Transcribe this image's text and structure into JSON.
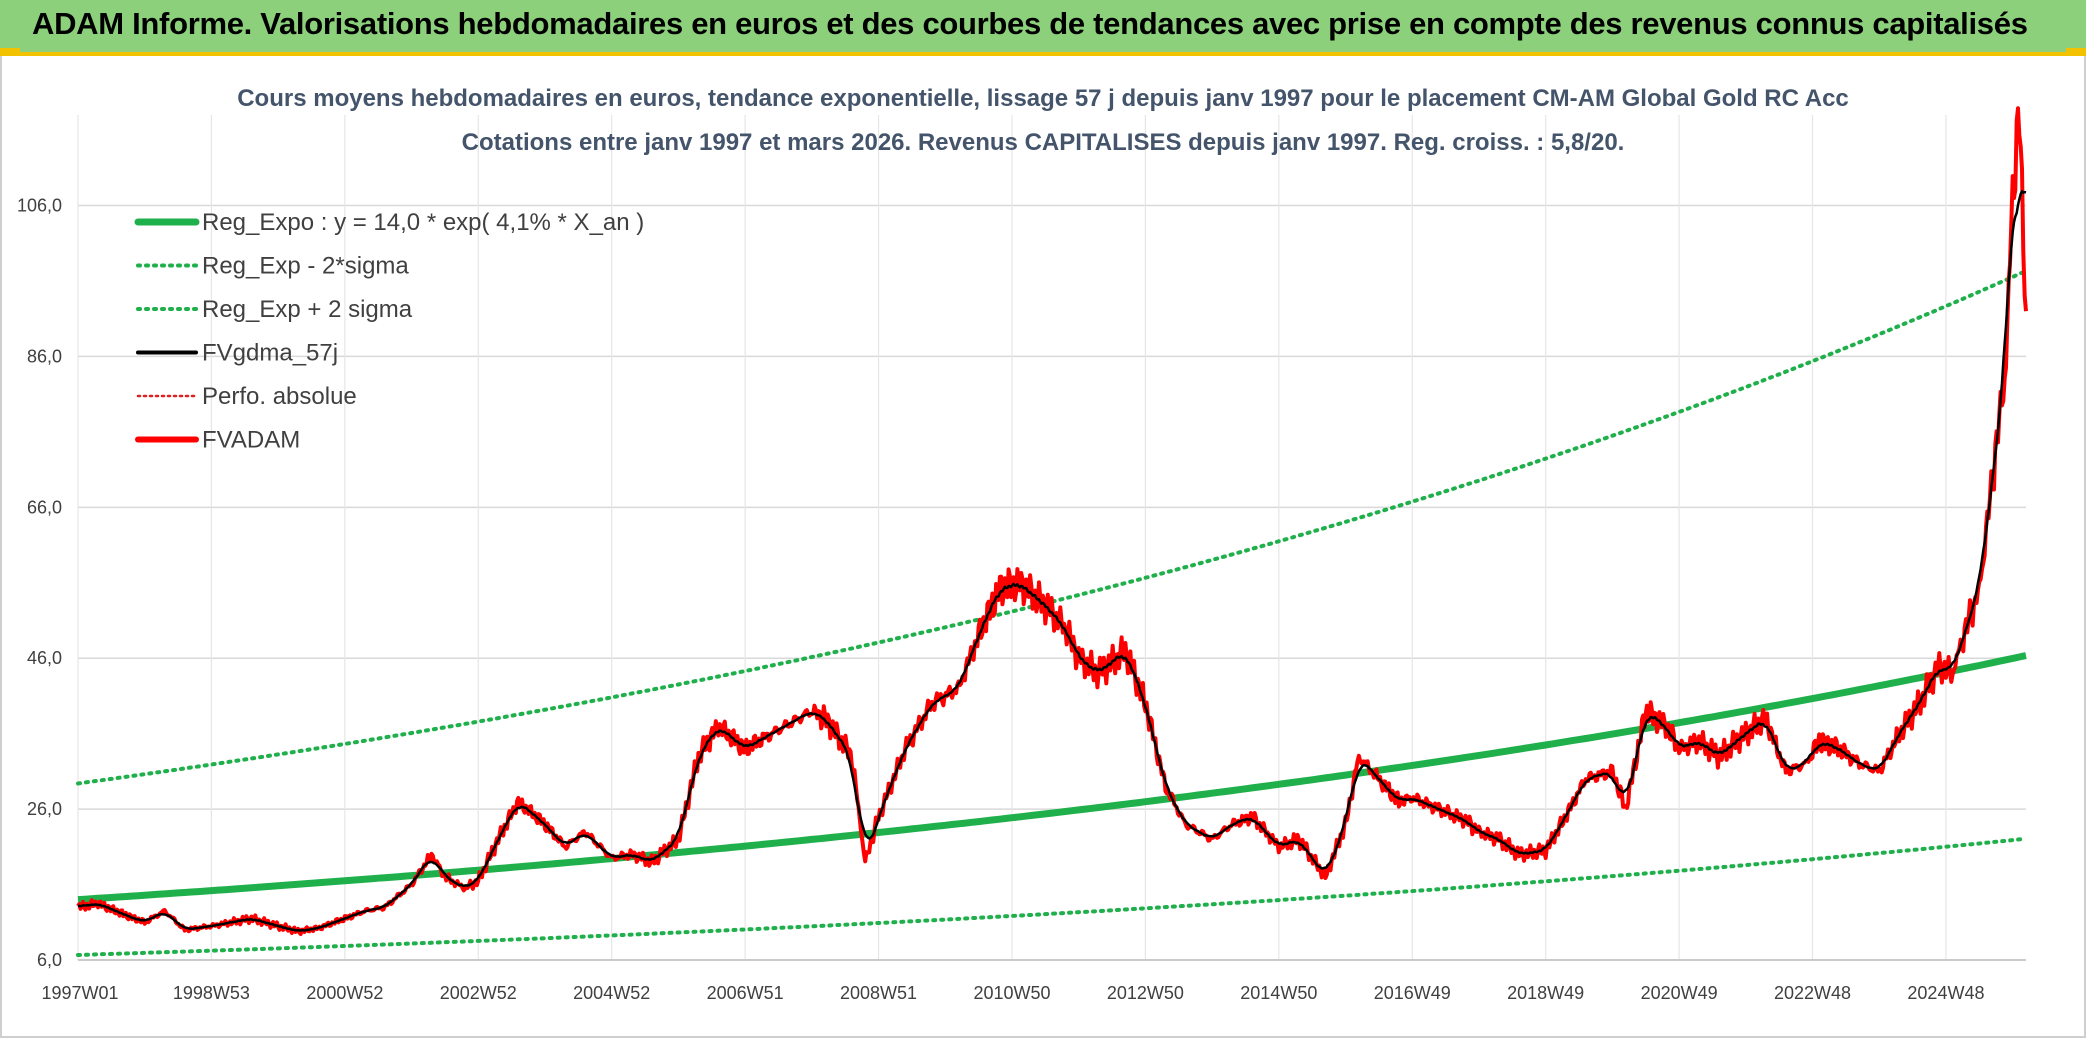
{
  "banner": {
    "title": "ADAM Informe. Valorisations hebdomadaires en euros et des courbes de tendances avec prise en compte des revenus connus capitalisés"
  },
  "chart_data": {
    "type": "line",
    "title_lines": [
      "Cours moyens hebdomadaires en euros, tendance exponentielle, lissage 57 j depuis janv 1997 pour le placement CM-AM Global Gold RC Acc",
      "Cotations entre janv 1997 et mars 2026. Revenus CAPITALISES depuis janv 1997. Reg. croiss. : 5,8/20."
    ],
    "x_tick_labels": [
      "1997W01",
      "1998W53",
      "2000W52",
      "2002W52",
      "2004W52",
      "2006W51",
      "2008W51",
      "2010W50",
      "2012W50",
      "2014W50",
      "2016W49",
      "2018W49",
      "2020W49",
      "2022W48",
      "2024W48"
    ],
    "x_range_years": [
      1997.0,
      2026.2
    ],
    "y_tick_labels": [
      "6,0",
      "26,0",
      "46,0",
      "66,0",
      "86,0",
      "106,0"
    ],
    "y_ticks": [
      6,
      26,
      46,
      66,
      86,
      106
    ],
    "ylim": [
      6,
      118
    ],
    "grid": true,
    "legend_position": "top-left",
    "regression": {
      "a": 14.0,
      "rate": 0.041,
      "sigma_factor": 2.1
    },
    "series": [
      {
        "name": "Reg_Expo : y = 14,0 * exp( 4,1% *  X_an )",
        "color": "#1fb04c",
        "style": "thick-solid"
      },
      {
        "name": "Reg_Exp - 2*sigma",
        "color": "#1fb04c",
        "style": "dotted"
      },
      {
        "name": "Reg_Exp + 2 sigma",
        "color": "#1fb04c",
        "style": "dotted"
      },
      {
        "name": "FVgdma_57j",
        "color": "#000000",
        "style": "solid"
      },
      {
        "name": "Perfo. absolue",
        "color": "#e02020",
        "style": "dotted"
      },
      {
        "name": "FVADAM",
        "color": "#ff0000",
        "style": "thick-solid",
        "x": [
          1997.0,
          1997.3,
          1997.7,
          1998.0,
          1998.3,
          1998.6,
          1999.0,
          1999.3,
          1999.6,
          2000.0,
          2000.3,
          2000.6,
          2001.0,
          2001.3,
          2001.6,
          2002.0,
          2002.3,
          2002.5,
          2002.8,
          2003.0,
          2003.3,
          2003.6,
          2004.0,
          2004.3,
          2004.6,
          2005.0,
          2005.3,
          2005.6,
          2006.0,
          2006.3,
          2006.6,
          2007.0,
          2007.3,
          2007.6,
          2008.0,
          2008.2,
          2008.6,
          2008.8,
          2009.0,
          2009.4,
          2009.8,
          2010.2,
          2010.5,
          2010.8,
          2011.1,
          2011.5,
          2011.8,
          2012.0,
          2012.3,
          2012.7,
          2013.0,
          2013.3,
          2013.6,
          2014.0,
          2014.3,
          2014.6,
          2015.0,
          2015.3,
          2015.7,
          2016.0,
          2016.2,
          2016.5,
          2016.8,
          2017.0,
          2017.4,
          2017.8,
          2018.0,
          2018.3,
          2018.6,
          2019.0,
          2019.3,
          2019.6,
          2020.0,
          2020.2,
          2020.5,
          2020.8,
          2021.0,
          2021.3,
          2021.6,
          2022.0,
          2022.3,
          2022.6,
          2022.9,
          2023.1,
          2023.4,
          2023.7,
          2024.0,
          2024.3,
          2024.6,
          2024.9,
          2025.1,
          2025.3,
          2025.5,
          2025.7,
          2025.9,
          2026.0,
          2026.1,
          2026.2
        ],
        "values": [
          13.0,
          13.5,
          12.0,
          11.0,
          12.5,
          10.0,
          10.5,
          11.0,
          11.5,
          10.5,
          9.8,
          10.2,
          11.5,
          12.5,
          13.0,
          16.0,
          20.0,
          17.0,
          15.5,
          16.5,
          22.0,
          27.0,
          24.0,
          21.0,
          23.0,
          19.5,
          20.0,
          19.0,
          22.0,
          33.0,
          37.0,
          34.0,
          35.5,
          37.0,
          39.0,
          38.0,
          33.0,
          19.0,
          25.0,
          34.0,
          40.0,
          42.0,
          49.0,
          55.0,
          56.0,
          53.0,
          50.0,
          46.0,
          44.0,
          47.0,
          40.0,
          29.0,
          24.0,
          22.0,
          24.0,
          25.0,
          21.0,
          22.0,
          17.0,
          24.0,
          33.0,
          30.0,
          27.0,
          27.5,
          26.0,
          24.5,
          23.0,
          22.0,
          20.0,
          20.5,
          25.0,
          30.0,
          31.0,
          26.0,
          39.0,
          37.0,
          34.0,
          35.0,
          33.0,
          36.0,
          38.0,
          31.0,
          32.0,
          35.0,
          34.0,
          32.0,
          31.0,
          36.0,
          40.0,
          45.0,
          44.0,
          50.0,
          55.0,
          70.0,
          85.0,
          108.0,
          118.0,
          92.0
        ]
      }
    ]
  }
}
